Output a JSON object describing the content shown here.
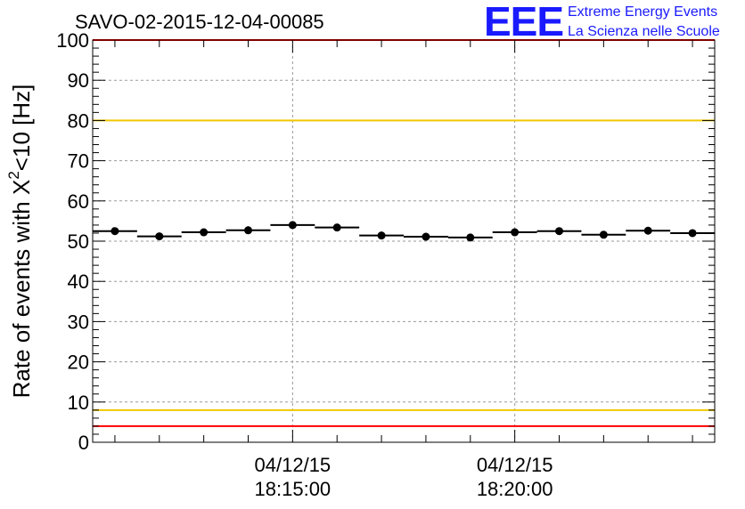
{
  "chart_data": {
    "type": "scatter",
    "title": "SAVO-02-2015-12-04-00085",
    "ylabel": "Rate of events with X²<10 [Hz]",
    "ylabel_parts": {
      "pre": "Rate of events with X",
      "sup": "2",
      "post": "<10 [Hz]"
    },
    "xlabel": "",
    "ylim": [
      0,
      100
    ],
    "yticks": [
      0,
      10,
      20,
      30,
      40,
      50,
      60,
      70,
      80,
      90,
      100
    ],
    "grid": true,
    "x_time_labels": [
      {
        "date": "04/12/15",
        "time": "18:15:00",
        "minute": 15
      },
      {
        "date": "04/12/15",
        "time": "18:20:00",
        "minute": 20
      }
    ],
    "x_range_minutes": [
      10.5,
      24.5
    ],
    "bin_width_minutes": 1,
    "series": [
      {
        "x_minutes": [
          11,
          12,
          13,
          14,
          15,
          16,
          17,
          18,
          19,
          20,
          21,
          22,
          23,
          24
        ],
        "values": [
          52.5,
          51.2,
          52.2,
          52.7,
          54.0,
          53.4,
          51.4,
          51.1,
          50.9,
          52.2,
          52.5,
          51.6,
          52.6,
          52.0
        ]
      }
    ],
    "reference_lines": [
      {
        "y": 80,
        "color": "#f0c800"
      },
      {
        "y": 8,
        "color": "#f0c800"
      },
      {
        "y": 4,
        "color": "#ff0000"
      },
      {
        "y": 100,
        "color": "#ff0000"
      }
    ]
  },
  "logo": {
    "mark": "EEE",
    "line1": "Extreme Energy Events",
    "line2": "La Scienza nelle Scuole",
    "color": "#1a1aff"
  }
}
